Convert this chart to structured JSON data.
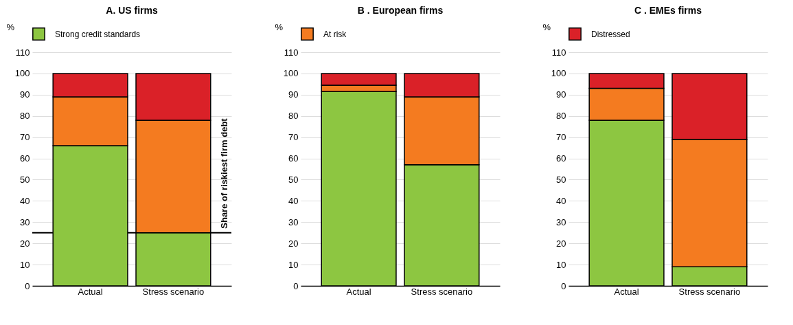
{
  "chart_data": [
    {
      "type": "bar",
      "title": "A. US firms",
      "ylabel": "%",
      "categories": [
        "Actual",
        "Stress scenario"
      ],
      "stacked": true,
      "legend": "top left",
      "grid": "y",
      "ylim": [
        0,
        110
      ],
      "yticks": [
        0,
        10,
        20,
        30,
        40,
        50,
        60,
        70,
        80,
        90,
        100,
        110
      ],
      "series": [
        {
          "name": "Strong credit standards",
          "color": "#8dc641",
          "values": [
            66,
            25
          ]
        },
        {
          "color": "#f47b20",
          "values": [
            23,
            53
          ]
        },
        {
          "color": "#da2128",
          "values": [
            11,
            22
          ]
        }
      ],
      "ref_lines": [
        {
          "axis": "y",
          "value": 25,
          "label": "Share of riskiest firm debt",
          "color": "#000000"
        }
      ]
    },
    {
      "type": "bar",
      "title": "B . European firms",
      "ylabel": "%",
      "categories": [
        "Actual",
        "Stress scenario"
      ],
      "stacked": true,
      "legend": "top left",
      "grid": "y",
      "ylim": [
        0,
        110
      ],
      "yticks": [
        0,
        10,
        20,
        30,
        40,
        50,
        60,
        70,
        80,
        90,
        100,
        110
      ],
      "series": [
        {
          "color": "#8dc641",
          "values": [
            91.5,
            57
          ]
        },
        {
          "name": "At risk",
          "color": "#f47b20",
          "values": [
            3,
            32
          ]
        },
        {
          "color": "#da2128",
          "values": [
            5.5,
            11
          ]
        }
      ]
    },
    {
      "type": "bar",
      "title": "C . EMEs firms",
      "ylabel": "%",
      "categories": [
        "Actual",
        "Stress scenario"
      ],
      "stacked": true,
      "legend": "top left",
      "grid": "y",
      "ylim": [
        0,
        110
      ],
      "yticks": [
        0,
        10,
        20,
        30,
        40,
        50,
        60,
        70,
        80,
        90,
        100,
        110
      ],
      "series": [
        {
          "color": "#8dc641",
          "values": [
            78,
            9
          ]
        },
        {
          "color": "#f47b20",
          "values": [
            15,
            60
          ]
        },
        {
          "name": "Distressed",
          "color": "#da2128",
          "values": [
            7,
            31
          ]
        }
      ]
    }
  ]
}
